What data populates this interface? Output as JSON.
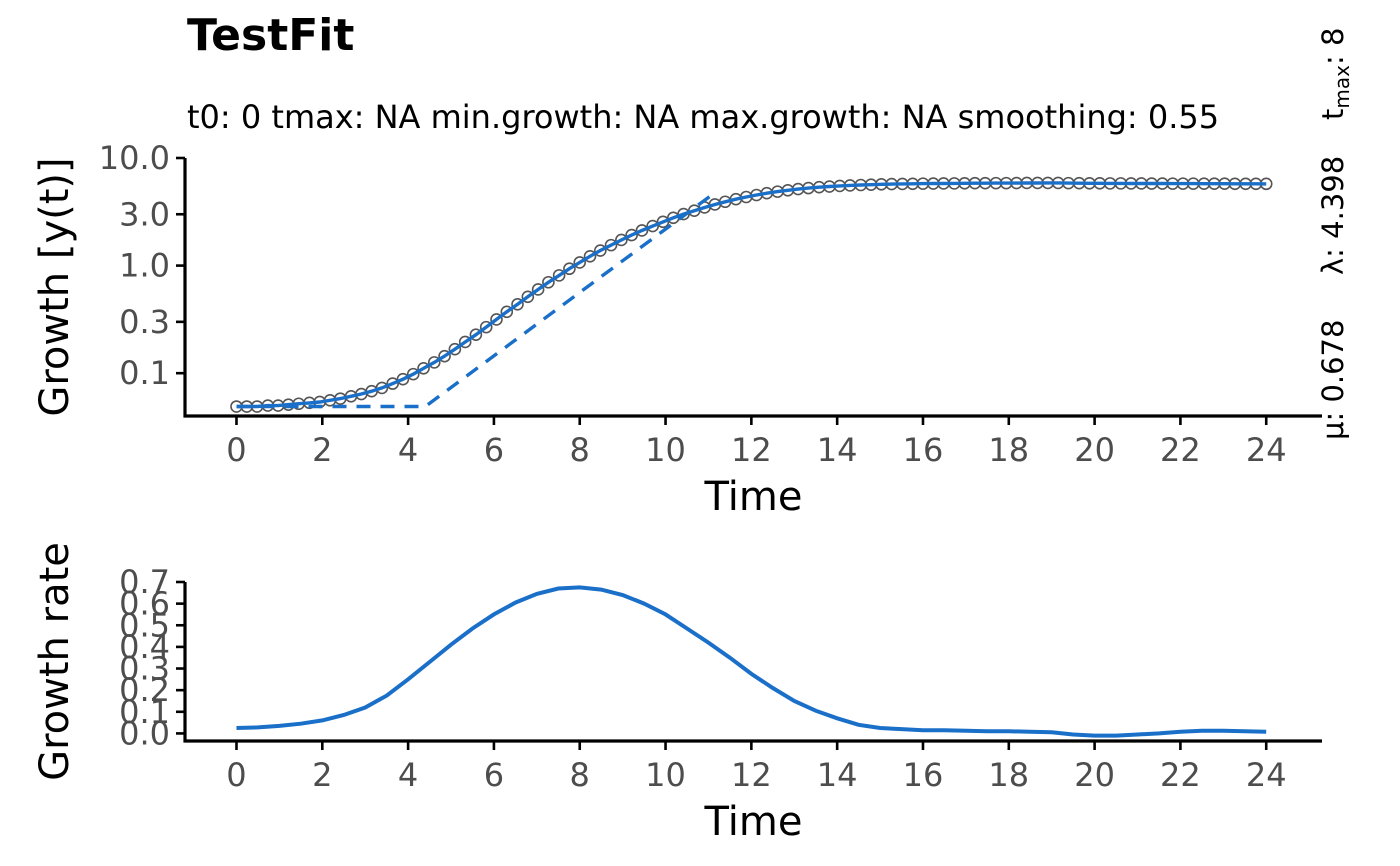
{
  "header": {
    "title": "TestFit",
    "subtitle": "t0: 0  tmax: NA   min.growth: NA   max.growth: NA   smoothing: 0.55"
  },
  "side_labels": {
    "mu": "μ: 0.678",
    "lambda": "λ: 4.398",
    "tmax_prefix": "t",
    "tmax_sub": "max",
    "tmax_value": ": 8"
  },
  "colors": {
    "fit": "#1a6fc8",
    "points": "#555555",
    "axis": "#000000"
  },
  "chart_data": [
    {
      "type": "scatter",
      "title": "TestFit",
      "xlabel": "Time",
      "ylabel": "Growth [y(t)]",
      "xlim": [
        -1.2,
        25.3
      ],
      "ylim": [
        0.04,
        10.0
      ],
      "yscale": "log",
      "x_ticks": [
        0,
        2,
        4,
        6,
        8,
        10,
        12,
        14,
        16,
        18,
        20,
        22,
        24
      ],
      "x_tick_labels": [
        "0",
        "2",
        "4",
        "6",
        "8",
        "10",
        "12",
        "14",
        "16",
        "18",
        "20",
        "22",
        "24"
      ],
      "y_ticks": [
        0.1,
        0.3,
        1.0,
        3.0,
        10.0
      ],
      "y_tick_labels": [
        "0.1",
        "0.3",
        "1.0",
        "3.0",
        "10.0"
      ],
      "grid": false,
      "series": [
        {
          "kind": "points",
          "x": [
            0.0,
            0.24,
            0.48,
            0.73,
            0.97,
            1.21,
            1.45,
            1.7,
            1.94,
            2.18,
            2.42,
            2.67,
            2.91,
            3.15,
            3.39,
            3.64,
            3.88,
            4.12,
            4.36,
            4.61,
            4.85,
            5.09,
            5.33,
            5.58,
            5.82,
            6.06,
            6.3,
            6.55,
            6.79,
            7.03,
            7.27,
            7.52,
            7.76,
            8.0,
            8.24,
            8.48,
            8.73,
            8.97,
            9.21,
            9.45,
            9.7,
            9.94,
            10.18,
            10.42,
            10.67,
            10.91,
            11.15,
            11.39,
            11.64,
            11.88,
            12.12,
            12.36,
            12.61,
            12.85,
            13.09,
            13.33,
            13.58,
            13.82,
            14.06,
            14.3,
            14.55,
            14.79,
            15.03,
            15.27,
            15.52,
            15.76,
            16.0,
            16.24,
            16.48,
            16.73,
            16.97,
            17.21,
            17.45,
            17.7,
            17.94,
            18.18,
            18.42,
            18.67,
            18.91,
            19.15,
            19.39,
            19.64,
            19.88,
            20.12,
            20.36,
            20.61,
            20.85,
            21.09,
            21.33,
            21.58,
            21.82,
            22.06,
            22.3,
            22.55,
            22.79,
            23.03,
            23.27,
            23.52,
            23.76,
            24.0
          ],
          "y": [
            0.049,
            0.049,
            0.049,
            0.05,
            0.05,
            0.051,
            0.052,
            0.053,
            0.054,
            0.056,
            0.058,
            0.061,
            0.064,
            0.068,
            0.073,
            0.08,
            0.088,
            0.098,
            0.111,
            0.126,
            0.144,
            0.167,
            0.195,
            0.228,
            0.268,
            0.316,
            0.372,
            0.437,
            0.513,
            0.6,
            0.7,
            0.811,
            0.935,
            1.07,
            1.22,
            1.38,
            1.55,
            1.73,
            1.92,
            2.12,
            2.33,
            2.55,
            2.78,
            3.01,
            3.24,
            3.47,
            3.7,
            3.92,
            4.14,
            4.34,
            4.53,
            4.71,
            4.87,
            5.01,
            5.14,
            5.25,
            5.35,
            5.43,
            5.5,
            5.56,
            5.61,
            5.65,
            5.69,
            5.72,
            5.74,
            5.76,
            5.78,
            5.79,
            5.8,
            5.81,
            5.82,
            5.83,
            5.83,
            5.84,
            5.84,
            5.85,
            5.86,
            5.86,
            5.87,
            5.87,
            5.84,
            5.83,
            5.82,
            5.82,
            5.81,
            5.81,
            5.8,
            5.8,
            5.79,
            5.79,
            5.78,
            5.78,
            5.78,
            5.77,
            5.77,
            5.77,
            5.76,
            5.76,
            5.76,
            5.75
          ]
        },
        {
          "kind": "fit",
          "x": [
            0.0,
            0.24,
            0.48,
            0.73,
            0.97,
            1.21,
            1.45,
            1.7,
            1.94,
            2.18,
            2.42,
            2.67,
            2.91,
            3.15,
            3.39,
            3.64,
            3.88,
            4.12,
            4.36,
            4.61,
            4.85,
            5.09,
            5.33,
            5.58,
            5.82,
            6.06,
            6.3,
            6.55,
            6.79,
            7.03,
            7.27,
            7.52,
            7.76,
            8.0,
            8.24,
            8.48,
            8.73,
            8.97,
            9.21,
            9.45,
            9.7,
            9.94,
            10.18,
            10.42,
            10.67,
            10.91,
            11.15,
            11.39,
            11.64,
            11.88,
            12.12,
            12.36,
            12.61,
            12.85,
            13.09,
            13.33,
            13.58,
            13.82,
            14.06,
            14.3,
            14.55,
            14.79,
            15.03,
            15.27,
            15.52,
            15.76,
            16.0,
            16.24,
            16.48,
            16.73,
            16.97,
            17.21,
            17.45,
            17.7,
            17.94,
            18.18,
            18.42,
            18.67,
            18.91,
            19.15,
            19.39,
            19.64,
            19.88,
            20.12,
            20.36,
            20.61,
            20.85,
            21.09,
            21.33,
            21.58,
            21.82,
            22.06,
            22.3,
            22.55,
            22.79,
            23.03,
            23.27,
            23.52,
            23.76,
            24.0
          ],
          "y": [
            0.049,
            0.049,
            0.049,
            0.05,
            0.05,
            0.051,
            0.052,
            0.053,
            0.054,
            0.056,
            0.058,
            0.061,
            0.064,
            0.068,
            0.073,
            0.08,
            0.088,
            0.098,
            0.111,
            0.126,
            0.144,
            0.167,
            0.195,
            0.228,
            0.268,
            0.316,
            0.372,
            0.437,
            0.513,
            0.6,
            0.7,
            0.811,
            0.935,
            1.07,
            1.22,
            1.38,
            1.55,
            1.73,
            1.92,
            2.12,
            2.33,
            2.55,
            2.78,
            3.01,
            3.24,
            3.47,
            3.7,
            3.92,
            4.14,
            4.34,
            4.53,
            4.71,
            4.87,
            5.01,
            5.14,
            5.25,
            5.35,
            5.43,
            5.5,
            5.56,
            5.61,
            5.65,
            5.69,
            5.72,
            5.74,
            5.76,
            5.78,
            5.79,
            5.8,
            5.81,
            5.82,
            5.83,
            5.83,
            5.84,
            5.84,
            5.85,
            5.86,
            5.86,
            5.87,
            5.87,
            5.84,
            5.83,
            5.82,
            5.82,
            5.81,
            5.81,
            5.8,
            5.8,
            5.79,
            5.79,
            5.78,
            5.78,
            5.78,
            5.77,
            5.77,
            5.77,
            5.76,
            5.76,
            5.76,
            5.75
          ]
        },
        {
          "kind": "tangent",
          "x": [
            0.0,
            4.4,
            11.1
          ],
          "y": [
            0.049,
            0.049,
            4.6
          ]
        }
      ]
    },
    {
      "type": "line",
      "xlabel": "Time",
      "ylabel": "Growth rate",
      "xlim": [
        -1.2,
        25.3
      ],
      "ylim": [
        -0.035,
        0.7
      ],
      "x_ticks": [
        0,
        2,
        4,
        6,
        8,
        10,
        12,
        14,
        16,
        18,
        20,
        22,
        24
      ],
      "x_tick_labels": [
        "0",
        "2",
        "4",
        "6",
        "8",
        "10",
        "12",
        "14",
        "16",
        "18",
        "20",
        "22",
        "24"
      ],
      "y_ticks": [
        0.0,
        0.1,
        0.2,
        0.3,
        0.4,
        0.5,
        0.6,
        0.7
      ],
      "y_tick_labels": [
        "0.0",
        "0.1",
        "0.2",
        "0.3",
        "0.4",
        "0.5",
        "0.6",
        "0.7"
      ],
      "grid": false,
      "series": [
        {
          "kind": "line",
          "x": [
            0,
            0.5,
            1,
            1.5,
            2,
            2.5,
            3,
            3.5,
            4,
            4.5,
            5,
            5.5,
            6,
            6.5,
            7,
            7.5,
            8,
            8.5,
            9,
            9.5,
            10,
            10.5,
            11,
            11.5,
            12,
            12.5,
            13,
            13.5,
            14,
            14.5,
            15,
            15.5,
            16,
            16.5,
            17,
            17.5,
            18,
            18.5,
            19,
            19.5,
            20,
            20.5,
            21,
            21.5,
            22,
            22.5,
            23,
            23.5,
            24
          ],
          "y": [
            0.025,
            0.028,
            0.035,
            0.045,
            0.06,
            0.085,
            0.12,
            0.175,
            0.25,
            0.33,
            0.41,
            0.485,
            0.55,
            0.605,
            0.645,
            0.67,
            0.675,
            0.665,
            0.64,
            0.6,
            0.55,
            0.485,
            0.42,
            0.35,
            0.275,
            0.21,
            0.15,
            0.105,
            0.07,
            0.04,
            0.025,
            0.02,
            0.015,
            0.015,
            0.012,
            0.01,
            0.01,
            0.008,
            0.005,
            -0.005,
            -0.01,
            -0.01,
            -0.005,
            0.0,
            0.008,
            0.012,
            0.012,
            0.01,
            0.008
          ]
        }
      ]
    }
  ]
}
